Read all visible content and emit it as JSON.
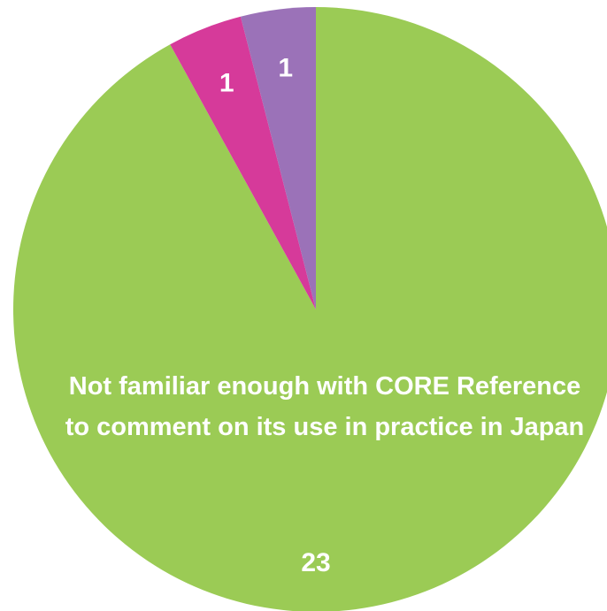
{
  "chart_data": {
    "type": "pie",
    "categories": [
      "Not familiar enough with CORE Reference to comment on its use in practice in Japan",
      null,
      null
    ],
    "values": [
      23,
      1,
      1
    ],
    "colors": [
      "#9bcb55",
      "#d63a9a",
      "#9b72b8"
    ]
  }
}
